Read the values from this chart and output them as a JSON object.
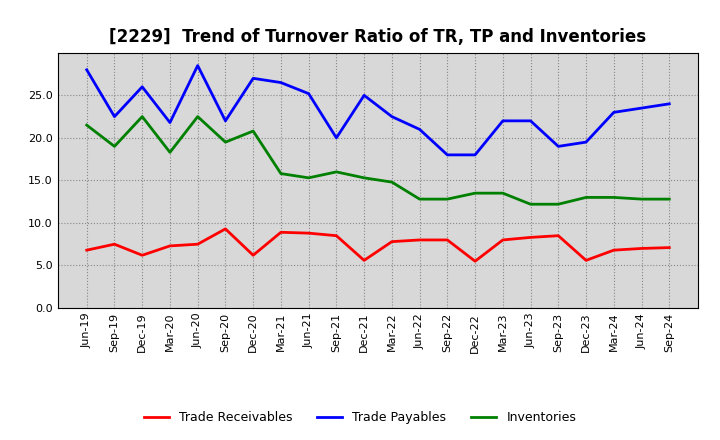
{
  "title": "[2229]  Trend of Turnover Ratio of TR, TP and Inventories",
  "x_labels": [
    "Jun-19",
    "Sep-19",
    "Dec-19",
    "Mar-20",
    "Jun-20",
    "Sep-20",
    "Dec-20",
    "Mar-21",
    "Jun-21",
    "Sep-21",
    "Dec-21",
    "Mar-22",
    "Jun-22",
    "Sep-22",
    "Dec-22",
    "Mar-23",
    "Jun-23",
    "Sep-23",
    "Dec-23",
    "Mar-24",
    "Jun-24",
    "Sep-24"
  ],
  "trade_receivables": [
    6.8,
    7.5,
    6.2,
    7.3,
    7.5,
    9.3,
    6.2,
    8.9,
    8.8,
    8.5,
    5.6,
    7.8,
    8.0,
    8.0,
    5.5,
    8.0,
    8.3,
    8.5,
    5.6,
    6.8,
    7.0,
    7.1
  ],
  "trade_payables": [
    28.0,
    22.5,
    26.0,
    21.8,
    28.5,
    22.0,
    27.0,
    26.5,
    25.2,
    20.0,
    25.0,
    22.5,
    21.0,
    18.0,
    18.0,
    22.0,
    22.0,
    19.0,
    19.5,
    23.0,
    23.5,
    24.0
  ],
  "inventories": [
    21.5,
    19.0,
    22.5,
    18.3,
    22.5,
    19.5,
    20.8,
    15.8,
    15.3,
    16.0,
    15.3,
    14.8,
    12.8,
    12.8,
    13.5,
    13.5,
    12.2,
    12.2,
    13.0,
    13.0,
    12.8,
    12.8
  ],
  "ylim": [
    0,
    30
  ],
  "yticks": [
    0.0,
    5.0,
    10.0,
    15.0,
    20.0,
    25.0
  ],
  "legend_labels": [
    "Trade Receivables",
    "Trade Payables",
    "Inventories"
  ],
  "line_colors": [
    "#ff0000",
    "#0000ff",
    "#008000"
  ],
  "line_width": 2.0,
  "bg_color": "#ffffff",
  "plot_bg_color": "#d8d8d8",
  "grid_color": "#888888",
  "title_fontsize": 12,
  "tick_fontsize": 8,
  "legend_fontsize": 9
}
